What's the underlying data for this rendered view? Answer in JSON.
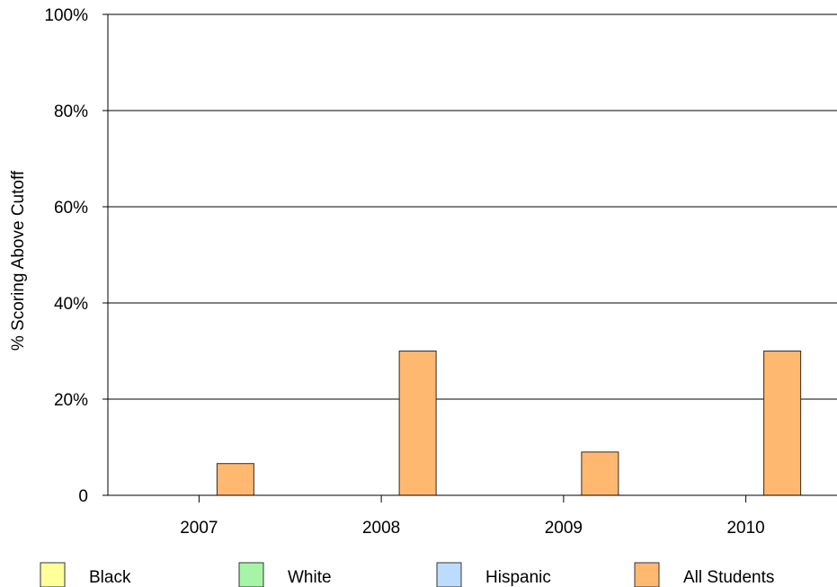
{
  "chart_data": {
    "type": "bar",
    "title": "",
    "xlabel": "",
    "ylabel": "% Scoring Above Cutoff",
    "ylim": [
      0,
      100
    ],
    "y_ticks": [
      "0",
      "20%",
      "40%",
      "60%",
      "80%",
      "100%"
    ],
    "y_tick_values": [
      0,
      20,
      40,
      60,
      80,
      100
    ],
    "categories": [
      "2007",
      "2008",
      "2009",
      "2010"
    ],
    "series": [
      {
        "name": "Black",
        "color": "#ffff99",
        "values": [
          0,
          0,
          0,
          0
        ]
      },
      {
        "name": "White",
        "color": "#a6f5a6",
        "values": [
          0,
          0,
          0,
          0
        ]
      },
      {
        "name": "Hispanic",
        "color": "#bcdcff",
        "values": [
          0,
          0,
          0,
          0
        ]
      },
      {
        "name": "All Students",
        "color": "#ffb870",
        "values": [
          6.6,
          30,
          9,
          30
        ]
      }
    ],
    "grid": true,
    "legend_position": "bottom"
  }
}
